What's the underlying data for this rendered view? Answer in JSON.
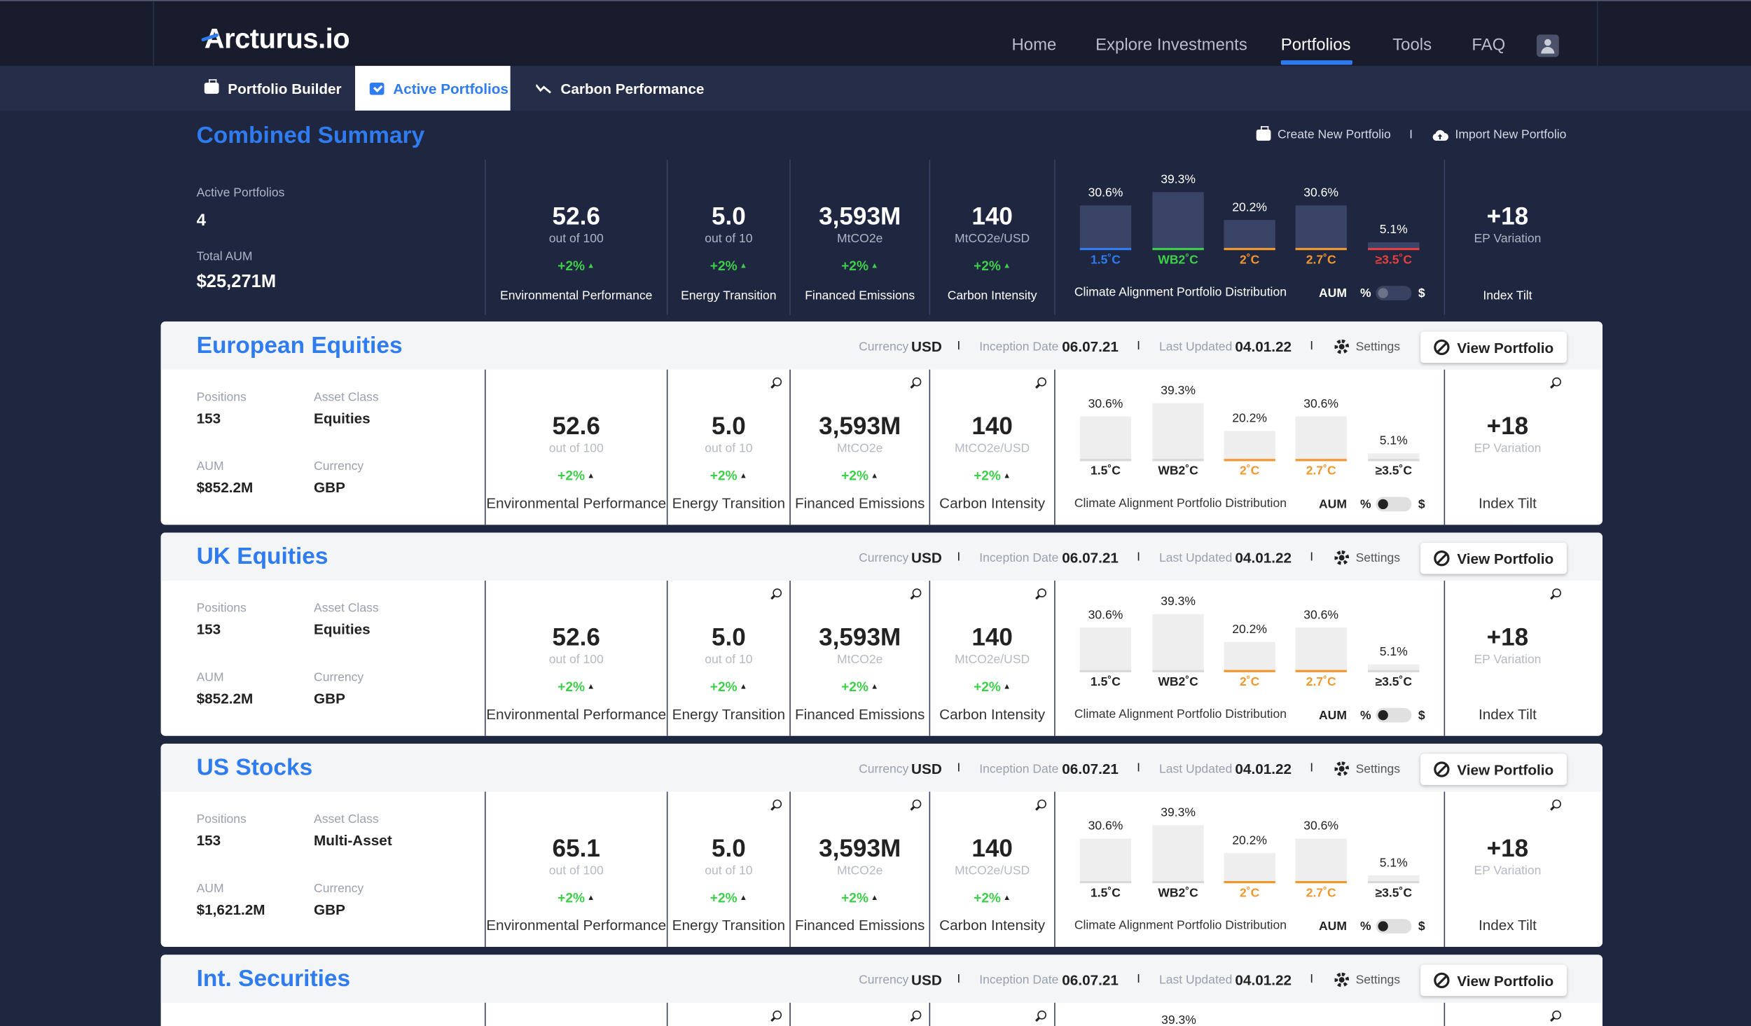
{
  "app": {
    "logo_text": "Arcturus.io"
  },
  "nav": {
    "items": [
      "Home",
      "Explore Investments",
      "Portfolios",
      "Tools",
      "FAQ"
    ],
    "active": "Portfolios"
  },
  "subnav": {
    "tabs": [
      "Portfolio Builder",
      "Active Portfolios",
      "Carbon Performance"
    ],
    "active": "Active Portfolios"
  },
  "summary": {
    "title": "Combined Summary",
    "actions": [
      "Create New Portfolio",
      "Import New Portfolio"
    ],
    "separator": "I",
    "active_portfolios_label": "Active Portfolios",
    "active_portfolios": "4",
    "total_aum_label": "Total AUM",
    "total_aum": "$25,271M",
    "metrics": [
      {
        "value": "52.6",
        "unit": "out of 100",
        "delta": "+2%",
        "name": "Environmental Performance"
      },
      {
        "value": "5.0",
        "unit": "out of 10",
        "delta": "+2%",
        "name": "Energy Transition"
      },
      {
        "value": "3,593M",
        "unit": "MtCO2e",
        "delta": "+2%",
        "name": "Financed Emissions"
      },
      {
        "value": "140",
        "unit": "MtCO2e/USD",
        "delta": "+2%",
        "name": "Carbon Intensity"
      }
    ],
    "distribution": {
      "title": "Climate Alignment Portfolio Distribution",
      "bars": [
        {
          "label": "1.5˚C",
          "pct": "30.6%",
          "value": 30.6
        },
        {
          "label": "WB2˚C",
          "pct": "39.3%",
          "value": 39.3
        },
        {
          "label": "2˚C",
          "pct": "20.2%",
          "value": 20.2
        },
        {
          "label": "2.7˚C",
          "pct": "30.6%",
          "value": 30.6
        },
        {
          "label": "≥3.5˚C",
          "pct": "5.1%",
          "value": 5.1
        }
      ],
      "toggle_label": "AUM",
      "toggle_left": "%",
      "toggle_right": "$"
    },
    "tilt": {
      "value": "+18",
      "unit": "EP Variation",
      "name": "Index Tilt"
    }
  },
  "colors": {
    "accent": "#2f7bf0",
    "positive": "#3ecf4a",
    "c15": "#2f7bf0",
    "wb2": "#3ecf4a",
    "c2": "#f0982f",
    "c27": "#f0982f",
    "c35": "#e54040"
  },
  "card_labels": {
    "currency": "Currency",
    "inception": "Inception Date",
    "updated": "Last Updated",
    "settings": "Settings",
    "view": "View Portfolio",
    "separator": "I",
    "positions": "Positions",
    "asset_class": "Asset Class",
    "aum": "AUM",
    "currency_field": "Currency"
  },
  "portfolios": [
    {
      "name": "European Equities",
      "currency": "USD",
      "inception": "06.07.21",
      "updated": "04.01.22",
      "positions": "153",
      "asset_class": "Equities",
      "aum": "$852.2M",
      "currency_field": "GBP",
      "metrics": [
        {
          "value": "52.6",
          "unit": "out of 100",
          "delta": "+2%",
          "name": "Environmental Performance"
        },
        {
          "value": "5.0",
          "unit": "out of 10",
          "delta": "+2%",
          "name": "Energy Transition"
        },
        {
          "value": "3,593M",
          "unit": "MtCO2e",
          "delta": "+2%",
          "name": "Financed Emissions"
        },
        {
          "value": "140",
          "unit": "MtCO2e/USD",
          "delta": "+2%",
          "name": "Carbon Intensity"
        }
      ]
    },
    {
      "name": "UK Equities",
      "currency": "USD",
      "inception": "06.07.21",
      "updated": "04.01.22",
      "positions": "153",
      "asset_class": "Equities",
      "aum": "$852.2M",
      "currency_field": "GBP",
      "metrics": [
        {
          "value": "52.6",
          "unit": "out of 100",
          "delta": "+2%",
          "name": "Environmental Performance"
        },
        {
          "value": "5.0",
          "unit": "out of 10",
          "delta": "+2%",
          "name": "Energy Transition"
        },
        {
          "value": "3,593M",
          "unit": "MtCO2e",
          "delta": "+2%",
          "name": "Financed Emissions"
        },
        {
          "value": "140",
          "unit": "MtCO2e/USD",
          "delta": "+2%",
          "name": "Carbon Intensity"
        }
      ]
    },
    {
      "name": "US Stocks",
      "currency": "USD",
      "inception": "06.07.21",
      "updated": "04.01.22",
      "positions": "153",
      "asset_class": "Multi-Asset",
      "aum": "$1,621.2M",
      "currency_field": "GBP",
      "metrics": [
        {
          "value": "65.1",
          "unit": "out of 100",
          "delta": "+2%",
          "name": "Environmental Performance"
        },
        {
          "value": "5.0",
          "unit": "out of 10",
          "delta": "+2%",
          "name": "Energy Transition"
        },
        {
          "value": "3,593M",
          "unit": "MtCO2e",
          "delta": "+2%",
          "name": "Financed Emissions"
        },
        {
          "value": "140",
          "unit": "MtCO2e/USD",
          "delta": "+2%",
          "name": "Carbon Intensity"
        }
      ]
    },
    {
      "name": "Int. Securities",
      "currency": "USD",
      "inception": "06.07.21",
      "updated": "04.01.22",
      "positions": "",
      "asset_class": "",
      "aum": "",
      "currency_field": "",
      "metrics": [],
      "first_bar_pct": "39.3%"
    }
  ]
}
